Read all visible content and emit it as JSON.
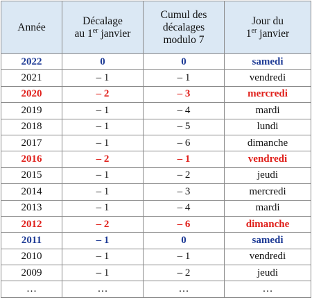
{
  "table": {
    "header": [
      [
        [
          "Année"
        ]
      ],
      [
        [
          "Décalage"
        ],
        [
          "au 1",
          {
            "sup": "er"
          },
          " janvier"
        ]
      ],
      [
        [
          "Cumul des"
        ],
        [
          "décalages"
        ],
        [
          "modulo 7"
        ]
      ],
      [
        [
          "Jour du"
        ],
        [
          "1",
          {
            "sup": "er"
          },
          " janvier"
        ]
      ]
    ],
    "rows": [
      {
        "cells": [
          "2022",
          "0",
          "0",
          "samedi"
        ],
        "color": "#1f3c96"
      },
      {
        "cells": [
          "2021",
          "– 1",
          "– 1",
          "vendredi"
        ]
      },
      {
        "cells": [
          "2020",
          "– 2",
          "– 3",
          "mercredi"
        ],
        "color": "#e0201b"
      },
      {
        "cells": [
          "2019",
          "– 1",
          "– 4",
          "mardi"
        ]
      },
      {
        "cells": [
          "2018",
          "– 1",
          "– 5",
          "lundi"
        ]
      },
      {
        "cells": [
          "2017",
          "– 1",
          "– 6",
          "dimanche"
        ]
      },
      {
        "cells": [
          "2016",
          "– 2",
          "– 1",
          "vendredi"
        ],
        "color": "#e0201b"
      },
      {
        "cells": [
          "2015",
          "– 1",
          "– 2",
          "jeudi"
        ]
      },
      {
        "cells": [
          "2014",
          "– 1",
          "– 3",
          "mercredi"
        ]
      },
      {
        "cells": [
          "2013",
          "– 1",
          "– 4",
          "mardi"
        ]
      },
      {
        "cells": [
          "2012",
          "– 2",
          "– 6",
          "dimanche"
        ],
        "color": "#e0201b"
      },
      {
        "cells": [
          "2011",
          "– 1",
          "0",
          "samedi"
        ],
        "color": "#1f3c96"
      },
      {
        "cells": [
          "2010",
          "– 1",
          "– 1",
          "vendredi"
        ]
      },
      {
        "cells": [
          "2009",
          "– 1",
          "– 2",
          "jeudi"
        ]
      },
      {
        "cells": [
          "…",
          "…",
          "…",
          "…"
        ]
      }
    ]
  }
}
